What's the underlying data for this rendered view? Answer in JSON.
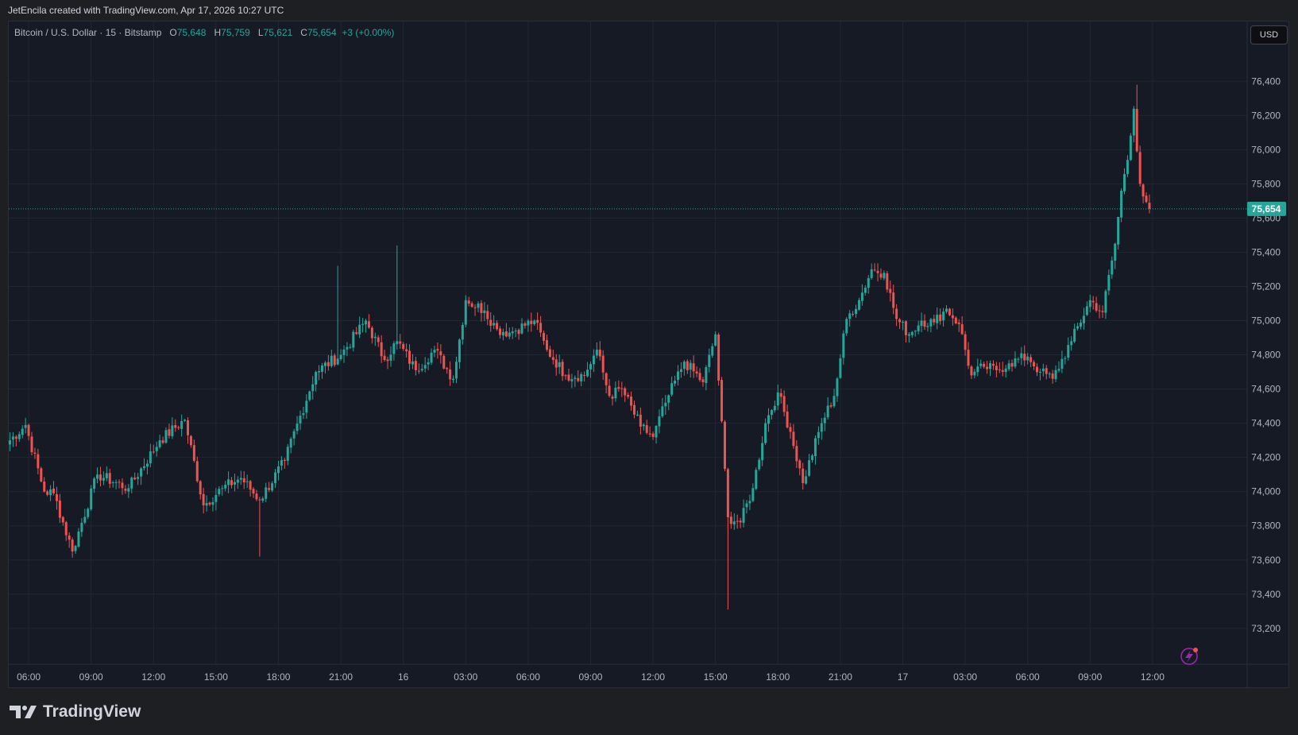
{
  "header": {
    "attribution": "JetEncila created with TradingView.com, Apr 17, 2026 10:27 UTC"
  },
  "legend": {
    "symbol": "Bitcoin / U.S. Dollar · 15 · Bitstamp",
    "o_label": "O",
    "o_value": "75,648",
    "h_label": "H",
    "h_value": "75,759",
    "l_label": "L",
    "l_value": "75,621",
    "c_label": "C",
    "c_value": "75,654",
    "change": "+3 (+0.00%)"
  },
  "currency_button": "USD",
  "last_price_label": "75,654",
  "footer": {
    "brand": "TradingView"
  },
  "colors": {
    "up": "#26a69a",
    "down": "#ef5350",
    "background": "#161a25",
    "grid": "#222632",
    "axis_text": "#b2b5be",
    "price_line": "#26a69a"
  },
  "chart_data": {
    "type": "candlestick",
    "symbol": "Bitcoin / U.S. Dollar",
    "interval": "15",
    "exchange": "Bitstamp",
    "currency": "USD",
    "x_tick_labels": [
      "06:00",
      "09:00",
      "12:00",
      "15:00",
      "18:00",
      "21:00",
      "16",
      "03:00",
      "06:00",
      "09:00",
      "12:00",
      "15:00",
      "18:00",
      "21:00",
      "17",
      "03:00",
      "06:00",
      "09:00",
      "12:00"
    ],
    "y_tick_labels": [
      "73,200",
      "73,400",
      "73,600",
      "73,800",
      "74,000",
      "74,200",
      "74,400",
      "74,600",
      "74,800",
      "75,000",
      "75,200",
      "75,400",
      "75,600",
      "75,800",
      "76,000",
      "76,200",
      "76,400"
    ],
    "y_ticks": [
      73200,
      73400,
      73600,
      73800,
      74000,
      74200,
      74400,
      74600,
      74800,
      75000,
      75200,
      75400,
      75600,
      75800,
      76000,
      76200,
      76400
    ],
    "ylim": [
      72990,
      76750
    ],
    "x_start": "Apr 15 04:30",
    "x_end": "Apr 17 13:00",
    "last_price": 75654,
    "grid": true,
    "anchor_close": [
      [
        0,
        74300
      ],
      [
        5,
        74390
      ],
      [
        11,
        74000
      ],
      [
        14,
        73990
      ],
      [
        20,
        73650
      ],
      [
        28,
        74100
      ],
      [
        38,
        74020
      ],
      [
        48,
        74300
      ],
      [
        56,
        74420
      ],
      [
        62,
        73920
      ],
      [
        68,
        74020
      ],
      [
        74,
        74080
      ],
      [
        80,
        73950
      ],
      [
        88,
        74180
      ],
      [
        98,
        74700
      ],
      [
        106,
        74800
      ],
      [
        114,
        75000
      ],
      [
        120,
        74770
      ],
      [
        124,
        74880
      ],
      [
        130,
        74710
      ],
      [
        136,
        74830
      ],
      [
        142,
        74660
      ],
      [
        146,
        75120
      ],
      [
        152,
        75060
      ],
      [
        156,
        74950
      ],
      [
        160,
        74930
      ],
      [
        168,
        75000
      ],
      [
        172,
        74830
      ],
      [
        178,
        74680
      ],
      [
        184,
        74680
      ],
      [
        188,
        74830
      ],
      [
        192,
        74560
      ],
      [
        196,
        74600
      ],
      [
        202,
        74380
      ],
      [
        206,
        74320
      ],
      [
        210,
        74520
      ],
      [
        216,
        74760
      ],
      [
        222,
        74640
      ],
      [
        226,
        74920
      ],
      [
        230,
        73850
      ],
      [
        234,
        73820
      ],
      [
        238,
        74020
      ],
      [
        242,
        74400
      ],
      [
        246,
        74580
      ],
      [
        250,
        74350
      ],
      [
        254,
        74050
      ],
      [
        260,
        74400
      ],
      [
        264,
        74560
      ],
      [
        268,
        75010
      ],
      [
        272,
        75120
      ],
      [
        276,
        75300
      ],
      [
        280,
        75280
      ],
      [
        284,
        75010
      ],
      [
        288,
        74920
      ],
      [
        292,
        75000
      ],
      [
        296,
        74990
      ],
      [
        300,
        75070
      ],
      [
        304,
        74980
      ],
      [
        308,
        74680
      ],
      [
        312,
        74730
      ],
      [
        316,
        74710
      ],
      [
        320,
        74750
      ],
      [
        326,
        74790
      ],
      [
        330,
        74700
      ],
      [
        334,
        74660
      ],
      [
        340,
        74880
      ],
      [
        346,
        75120
      ],
      [
        350,
        75050
      ],
      [
        354,
        75450
      ],
      [
        356,
        75760
      ],
      [
        358,
        75940
      ],
      [
        360,
        76240
      ],
      [
        362,
        75800
      ],
      [
        365,
        75654
      ]
    ],
    "x_tick_bar_index": [
      6,
      26,
      46,
      66,
      86,
      106,
      126,
      146,
      166,
      186,
      206,
      226,
      246,
      266,
      286,
      306,
      326,
      346,
      366
    ],
    "volatility_seed": 7
  }
}
